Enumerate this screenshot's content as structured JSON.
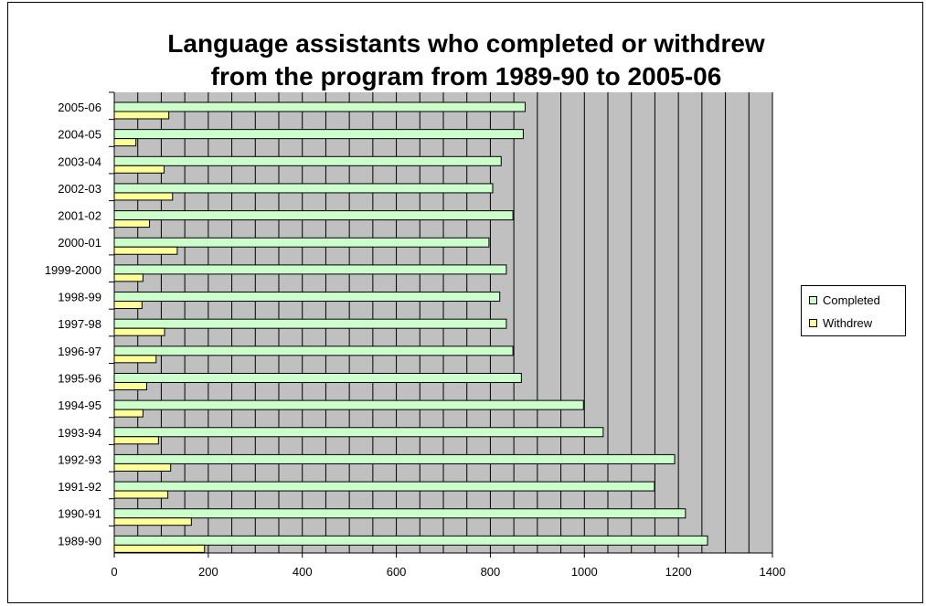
{
  "chart_data": {
    "type": "bar",
    "orientation": "horizontal",
    "title_lines": [
      "Language assistants who completed or withdrew",
      "from the program from 1989-90 to 2005-06"
    ],
    "categories": [
      "2005-06",
      "2004-05",
      "2003-04",
      "2002-03",
      "2001-02",
      "2000-01",
      "1999-2000",
      "1998-99",
      "1997-98",
      "1996-97",
      "1995-96",
      "1994-95",
      "1993-94",
      "1992-93",
      "1991-92",
      "1990-91",
      "1989-90"
    ],
    "series": [
      {
        "name": "Completed",
        "color": "#ccffcc",
        "values": [
          874,
          870,
          823,
          805,
          848,
          797,
          834,
          820,
          834,
          848,
          866,
          998,
          1040,
          1192,
          1149,
          1215,
          1262
        ]
      },
      {
        "name": "Withdrew",
        "color": "#ffff99",
        "values": [
          116,
          46,
          106,
          124,
          75,
          134,
          61,
          59,
          107,
          89,
          69,
          61,
          94,
          120,
          114,
          164,
          192
        ]
      }
    ],
    "xlim": [
      0,
      1400
    ],
    "x_ticks": [
      0,
      200,
      400,
      600,
      800,
      1000,
      1200,
      1400
    ],
    "grid": "vertical every 50",
    "plot_background": "#c0c0c0",
    "legend_position": "right"
  }
}
